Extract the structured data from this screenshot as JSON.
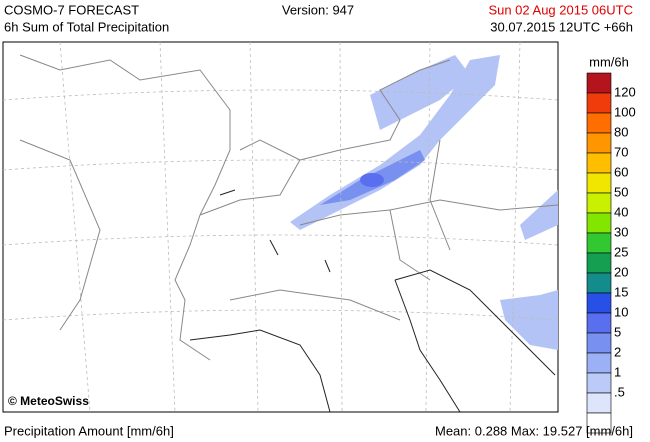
{
  "header": {
    "title": "COSMO-7 FORECAST",
    "subtitle": "6h Sum of Total Precipitation",
    "version": "Version: 947",
    "valid_time": "Sun 02 Aug 2015 06UTC",
    "run_time": "30.07.2015 12UTC +66h"
  },
  "map": {
    "credit": "© MeteoSwiss"
  },
  "legend": {
    "unit": "mm/6h",
    "labels": [
      "120",
      "100",
      "80",
      "70",
      "60",
      "50",
      "40",
      "30",
      "25",
      "20",
      "15",
      "10",
      "5",
      "2",
      "1",
      ".5"
    ],
    "colors": [
      "#b4141e",
      "#f03c0a",
      "#ff6e00",
      "#ff9600",
      "#ffbe00",
      "#f0e600",
      "#c8f000",
      "#82e600",
      "#32c832",
      "#14a050",
      "#148c8c",
      "#2850e6",
      "#5a6ef0",
      "#7890f0",
      "#9bb0f5",
      "#bccaf7",
      "#dde5fb",
      "#ffffff"
    ]
  },
  "footer": {
    "label": "Precipitation Amount [mm/6h]",
    "stats": "Mean:  0.288 Max: 19.527 [mm/6h]"
  }
}
